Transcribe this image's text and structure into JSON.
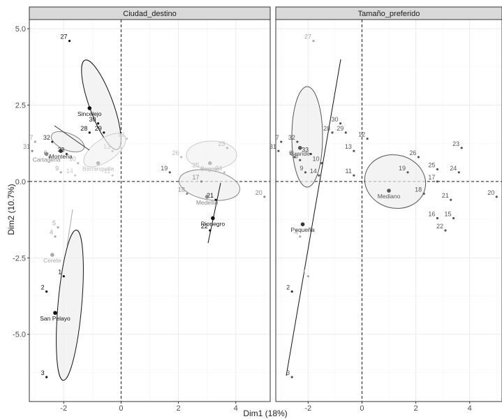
{
  "chart_data": {
    "type": "scatter",
    "xlabel": "Dim1 (18%)",
    "ylabel": "Dim2 (10.7%)",
    "xlim": [
      -3.2,
      5.2
    ],
    "ylim": [
      -7.2,
      5.3
    ],
    "x_ticks": [
      "-2",
      "0",
      "2",
      "4"
    ],
    "y_ticks": [
      "5.0",
      "2.5",
      "0.0",
      "-2.5",
      "-5.0"
    ],
    "x_tick_values": [
      -2,
      0,
      2,
      4
    ],
    "y_tick_values": [
      5,
      2.5,
      0,
      -2.5,
      -5
    ],
    "grid": true,
    "panels": [
      {
        "strip": "Ciudad_destino",
        "points": [
          {
            "label": "27",
            "x": -1.8,
            "y": 4.6,
            "color": "#111111"
          },
          {
            "label": "30",
            "x": -0.8,
            "y": 1.9,
            "color": "#111111"
          },
          {
            "label": "29",
            "x": -0.6,
            "y": 1.6,
            "color": "#111111"
          },
          {
            "label": "28",
            "x": -1.1,
            "y": 1.6,
            "color": "#111111"
          },
          {
            "label": "7",
            "x": -3.0,
            "y": 1.3,
            "color": "#aaaaaa"
          },
          {
            "label": "32",
            "x": -2.4,
            "y": 1.3,
            "color": "#333333"
          },
          {
            "label": "31",
            "x": -3.1,
            "y": 1.0,
            "color": "#888888"
          },
          {
            "label": "6",
            "x": -2.5,
            "y": 0.8,
            "color": "#888888"
          },
          {
            "label": "33",
            "x": -1.9,
            "y": 0.9,
            "color": "#333333"
          },
          {
            "label": "10",
            "x": -1.5,
            "y": 0.6,
            "color": "#bbbbbb"
          },
          {
            "label": "9",
            "x": -2.1,
            "y": 0.3,
            "color": "#aaaaaa"
          },
          {
            "label": "14",
            "x": -1.6,
            "y": 0.2,
            "color": "#cccccc"
          },
          {
            "label": "13",
            "x": -0.3,
            "y": 1.0,
            "color": "#cccccc"
          },
          {
            "label": "12",
            "x": 0.2,
            "y": 1.4,
            "color": "#cccccc"
          },
          {
            "label": "11",
            "x": -0.3,
            "y": 0.2,
            "color": "#cccccc"
          },
          {
            "label": "26",
            "x": 2.1,
            "y": 0.8,
            "color": "#bbbbbb"
          },
          {
            "label": "23",
            "x": 3.7,
            "y": 1.1,
            "color": "#bbbbbb"
          },
          {
            "label": "19",
            "x": 1.7,
            "y": 0.3,
            "color": "#555555"
          },
          {
            "label": "25",
            "x": 2.8,
            "y": 0.4,
            "color": "#bbbbbb"
          },
          {
            "label": "24",
            "x": 3.6,
            "y": 0.3,
            "color": "#bbbbbb"
          },
          {
            "label": "17",
            "x": 2.8,
            "y": 0.0,
            "color": "#888888"
          },
          {
            "label": "18",
            "x": 2.3,
            "y": -0.4,
            "color": "#888888"
          },
          {
            "label": "21",
            "x": 3.3,
            "y": -0.6,
            "color": "#111111"
          },
          {
            "label": "20",
            "x": 5.0,
            "y": -0.5,
            "color": "#888888"
          },
          {
            "label": "22",
            "x": 3.1,
            "y": -1.6,
            "color": "#111111"
          },
          {
            "label": "5",
            "x": -2.2,
            "y": -1.5,
            "color": "#aaaaaa"
          },
          {
            "label": "4",
            "x": -2.3,
            "y": -1.8,
            "color": "#aaaaaa"
          },
          {
            "label": "1",
            "x": -2.0,
            "y": -3.1,
            "color": "#111111"
          },
          {
            "label": "2",
            "x": -2.6,
            "y": -3.6,
            "color": "#111111"
          },
          {
            "label": "3",
            "x": -2.6,
            "y": -6.4,
            "color": "#111111"
          }
        ],
        "centroids": [
          {
            "label": "Sincelejo",
            "x": -1.1,
            "y": 2.4,
            "color": "#111111"
          },
          {
            "label": "Monteria",
            "x": -2.1,
            "y": 1.0,
            "color": "#333333"
          },
          {
            "label": "Cartagena",
            "x": -2.6,
            "y": 0.9,
            "color": "#888888"
          },
          {
            "label": "Barranquilla",
            "x": -0.8,
            "y": 0.6,
            "color": "#bbbbbb"
          },
          {
            "label": "Bogota",
            "x": 3.1,
            "y": 0.6,
            "color": "#bbbbbb"
          },
          {
            "label": "Medellin",
            "x": 3.0,
            "y": -0.5,
            "color": "#888888"
          },
          {
            "label": "Rionegro",
            "x": 3.2,
            "y": -1.2,
            "color": "#111111"
          },
          {
            "label": "Cerete",
            "x": -2.4,
            "y": -2.4,
            "color": "#aaaaaa"
          },
          {
            "label": "San Pelayo",
            "x": -2.3,
            "y": -4.3,
            "color": "#111111"
          }
        ]
      },
      {
        "strip": "Tamaño_preferido",
        "points": [
          {
            "label": "27",
            "x": -1.8,
            "y": 4.6,
            "color": "#aaaaaa"
          },
          {
            "label": "30",
            "x": -0.8,
            "y": 1.9,
            "color": "#555555"
          },
          {
            "label": "29",
            "x": -0.6,
            "y": 1.6,
            "color": "#555555"
          },
          {
            "label": "28",
            "x": -1.1,
            "y": 1.6,
            "color": "#555555"
          },
          {
            "label": "12",
            "x": 0.2,
            "y": 1.4,
            "color": "#555555"
          },
          {
            "label": "7",
            "x": -3.0,
            "y": 1.3,
            "color": "#555555"
          },
          {
            "label": "32",
            "x": -2.4,
            "y": 1.3,
            "color": "#555555"
          },
          {
            "label": "31",
            "x": -3.1,
            "y": 1.0,
            "color": "#555555"
          },
          {
            "label": "6",
            "x": -2.5,
            "y": 0.8,
            "color": "#555555"
          },
          {
            "label": "8",
            "x": -2.3,
            "y": 0.7,
            "color": "#555555"
          },
          {
            "label": "33",
            "x": -1.9,
            "y": 0.9,
            "color": "#333333"
          },
          {
            "label": "13",
            "x": -0.3,
            "y": 1.0,
            "color": "#555555"
          },
          {
            "label": "10",
            "x": -1.5,
            "y": 0.6,
            "color": "#555555"
          },
          {
            "label": "11",
            "x": -0.3,
            "y": 0.2,
            "color": "#555555"
          },
          {
            "label": "9",
            "x": -2.1,
            "y": 0.3,
            "color": "#555555"
          },
          {
            "label": "14",
            "x": -1.6,
            "y": 0.2,
            "color": "#555555"
          },
          {
            "label": "23",
            "x": 3.7,
            "y": 1.1,
            "color": "#555555"
          },
          {
            "label": "26",
            "x": 2.1,
            "y": 0.8,
            "color": "#555555"
          },
          {
            "label": "25",
            "x": 2.8,
            "y": 0.4,
            "color": "#555555"
          },
          {
            "label": "24",
            "x": 3.6,
            "y": 0.3,
            "color": "#555555"
          },
          {
            "label": "19",
            "x": 1.7,
            "y": 0.3,
            "color": "#555555"
          },
          {
            "label": "17",
            "x": 2.8,
            "y": 0.0,
            "color": "#555555"
          },
          {
            "label": "18",
            "x": 2.3,
            "y": -0.4,
            "color": "#555555"
          },
          {
            "label": "20",
            "x": 5.0,
            "y": -0.5,
            "color": "#555555"
          },
          {
            "label": "21",
            "x": 3.3,
            "y": -0.6,
            "color": "#555555"
          },
          {
            "label": "16",
            "x": 2.8,
            "y": -1.2,
            "color": "#555555"
          },
          {
            "label": "15",
            "x": 3.4,
            "y": -1.2,
            "color": "#555555"
          },
          {
            "label": "22",
            "x": 3.1,
            "y": -1.6,
            "color": "#555555"
          },
          {
            "label": "4",
            "x": -2.3,
            "y": -1.8,
            "color": "#aaaaaa"
          },
          {
            "label": "1",
            "x": -2.0,
            "y": -3.1,
            "color": "#aaaaaa"
          },
          {
            "label": "2",
            "x": -2.6,
            "y": -3.6,
            "color": "#333333"
          },
          {
            "label": "3",
            "x": -2.6,
            "y": -6.4,
            "color": "#555555"
          }
        ],
        "centroids": [
          {
            "label": "Grande",
            "x": -2.3,
            "y": 1.1,
            "color": "#555555"
          },
          {
            "label": "Mediano",
            "x": 1.0,
            "y": -0.3,
            "color": "#555555"
          },
          {
            "label": "Pequeña",
            "x": -2.2,
            "y": -1.4,
            "color": "#333333"
          }
        ]
      }
    ]
  }
}
